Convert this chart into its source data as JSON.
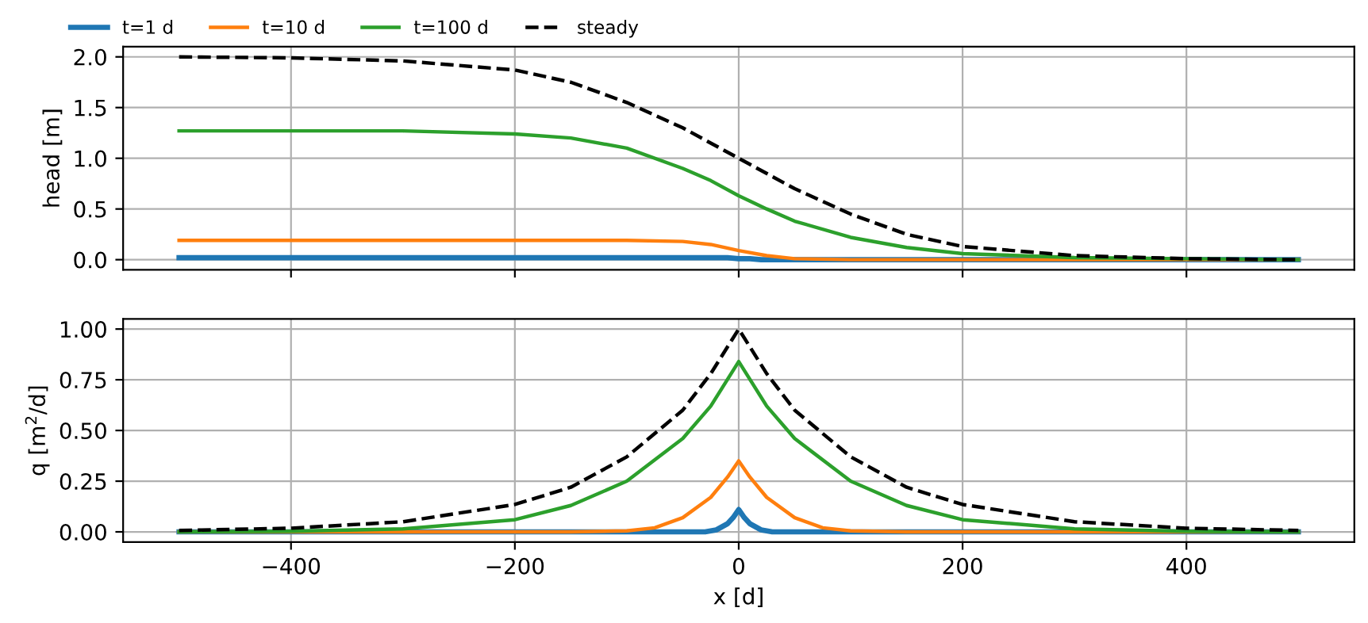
{
  "chart_data": [
    {
      "type": "line",
      "ylabel": "head [m]",
      "legend": "top",
      "grid": true,
      "tick_labels": "y",
      "xlim": [
        -550,
        550
      ],
      "ylim": [
        -0.1,
        2.1
      ],
      "xticks": [
        -400,
        -200,
        0,
        200,
        400
      ],
      "yticks": [
        {
          "value": 0,
          "label": "0.0"
        },
        {
          "value": 0.5,
          "label": "0.5"
        },
        {
          "value": 1,
          "label": "1.0"
        },
        {
          "value": 1.5,
          "label": "1.5"
        },
        {
          "value": 2,
          "label": "2.0"
        }
      ],
      "series": [
        {
          "name": "t=1 d",
          "color": "#1f77b4",
          "line_style": "solid",
          "x": [
            -500,
            -100,
            -10,
            0,
            10,
            20,
            50,
            500
          ],
          "values": [
            0.02,
            0.02,
            0.02,
            0.01,
            0.01,
            0,
            0,
            0
          ]
        },
        {
          "name": "t=10 d",
          "color": "#ff7f0e",
          "line_style": "solid",
          "x": [
            -500,
            -200,
            -100,
            -50,
            -25,
            0,
            25,
            50,
            100,
            500
          ],
          "values": [
            0.19,
            0.19,
            0.19,
            0.18,
            0.15,
            0.09,
            0.04,
            0.01,
            0,
            0
          ]
        },
        {
          "name": "t=100 d",
          "color": "#2ca02c",
          "line_style": "solid",
          "x": [
            -500,
            -300,
            -200,
            -150,
            -100,
            -50,
            -25,
            0,
            25,
            50,
            100,
            150,
            200,
            300,
            400,
            500
          ],
          "values": [
            1.27,
            1.27,
            1.24,
            1.2,
            1.1,
            0.9,
            0.78,
            0.63,
            0.5,
            0.38,
            0.22,
            0.12,
            0.06,
            0.02,
            0.01,
            0
          ]
        },
        {
          "name": "steady",
          "color": "#000000",
          "line_style": "dashed",
          "x": [
            -500,
            -400,
            -300,
            -200,
            -150,
            -100,
            -50,
            0,
            50,
            100,
            150,
            200,
            300,
            400,
            500
          ],
          "values": [
            2.0,
            1.99,
            1.96,
            1.87,
            1.75,
            1.55,
            1.3,
            1.0,
            0.7,
            0.45,
            0.25,
            0.13,
            0.04,
            0.01,
            0
          ]
        }
      ]
    },
    {
      "type": "line",
      "xlabel": "x [d]",
      "ylabel": "q [m$^{2}$/d]",
      "grid": true,
      "xlim": [
        -550,
        550
      ],
      "ylim": [
        -0.05,
        1.05
      ],
      "xticks": [
        {
          "value": -400,
          "label": "−400"
        },
        {
          "value": -200,
          "label": "−200"
        },
        0,
        200,
        400
      ],
      "yticks": [
        {
          "value": 0,
          "label": "0.00"
        },
        {
          "value": 0.25,
          "label": "0.25"
        },
        {
          "value": 0.5,
          "label": "0.50"
        },
        {
          "value": 0.75,
          "label": "0.75"
        },
        {
          "value": 1,
          "label": "1.00"
        }
      ],
      "series": [
        {
          "color": "#1f77b4",
          "line_style": "solid",
          "x": [
            -500,
            -30,
            -20,
            -10,
            -5,
            0,
            5,
            10,
            20,
            30,
            500
          ],
          "values": [
            0,
            0,
            0.01,
            0.04,
            0.07,
            0.11,
            0.07,
            0.04,
            0.01,
            0,
            0
          ]
        },
        {
          "color": "#ff7f0e",
          "line_style": "solid",
          "x": [
            -500,
            -150,
            -100,
            -75,
            -50,
            -25,
            -10,
            0,
            10,
            25,
            50,
            75,
            100,
            150,
            500
          ],
          "values": [
            0,
            0,
            0.005,
            0.02,
            0.07,
            0.17,
            0.27,
            0.35,
            0.27,
            0.17,
            0.07,
            0.02,
            0.005,
            0,
            0
          ]
        },
        {
          "color": "#2ca02c",
          "line_style": "solid",
          "x": [
            -500,
            -400,
            -300,
            -200,
            -150,
            -100,
            -50,
            -25,
            0,
            25,
            50,
            100,
            150,
            200,
            300,
            400,
            500
          ],
          "values": [
            0,
            0.003,
            0.015,
            0.06,
            0.13,
            0.25,
            0.46,
            0.62,
            0.84,
            0.62,
            0.46,
            0.25,
            0.13,
            0.06,
            0.015,
            0.003,
            0
          ]
        },
        {
          "color": "#000000",
          "line_style": "dashed",
          "x": [
            -500,
            -400,
            -300,
            -200,
            -150,
            -100,
            -50,
            -25,
            0,
            25,
            50,
            100,
            150,
            200,
            300,
            400,
            500
          ],
          "values": [
            0.007,
            0.018,
            0.05,
            0.135,
            0.22,
            0.37,
            0.6,
            0.78,
            1.0,
            0.78,
            0.6,
            0.37,
            0.22,
            0.135,
            0.05,
            0.018,
            0.007
          ]
        }
      ]
    }
  ]
}
